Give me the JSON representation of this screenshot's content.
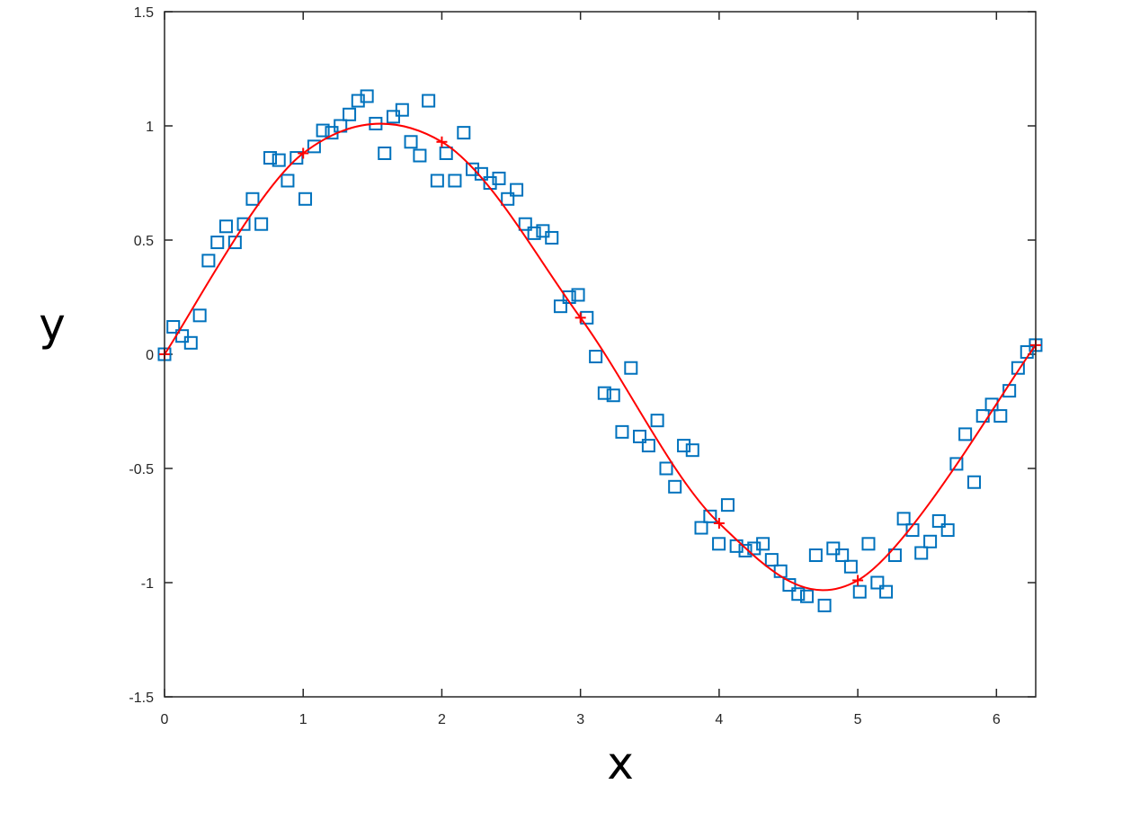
{
  "chart_data": {
    "type": "scatter",
    "xlabel": "x",
    "ylabel": "y",
    "xlim": [
      0,
      6.2832
    ],
    "ylim": [
      -1.5,
      1.5
    ],
    "xticks": [
      "0",
      "1",
      "2",
      "3",
      "4",
      "5",
      "6"
    ],
    "yticks": [
      "-1.5",
      "-1",
      "-0.5",
      "0",
      "0.5",
      "1",
      "1.5"
    ],
    "grid": false,
    "colors": {
      "scatter": "#0072bd",
      "fit": "#ff0000"
    },
    "series": [
      {
        "style": "square-markers",
        "x": [
          0.0,
          0.063,
          0.127,
          0.19,
          0.254,
          0.317,
          0.381,
          0.444,
          0.508,
          0.571,
          0.635,
          0.698,
          0.762,
          0.825,
          0.888,
          0.952,
          1.015,
          1.079,
          1.142,
          1.206,
          1.269,
          1.333,
          1.396,
          1.46,
          1.523,
          1.587,
          1.65,
          1.714,
          1.777,
          1.841,
          1.904,
          1.967,
          2.031,
          2.094,
          2.158,
          2.221,
          2.285,
          2.348,
          2.412,
          2.475,
          2.539,
          2.602,
          2.666,
          2.729,
          2.793,
          2.856,
          2.919,
          2.983,
          3.046,
          3.11,
          3.173,
          3.237,
          3.3,
          3.364,
          3.427,
          3.491,
          3.554,
          3.618,
          3.681,
          3.745,
          3.808,
          3.871,
          3.935,
          3.998,
          4.062,
          4.125,
          4.189,
          4.252,
          4.316,
          4.379,
          4.443,
          4.506,
          4.57,
          4.633,
          4.697,
          4.76,
          4.823,
          4.887,
          4.95,
          5.014,
          5.077,
          5.141,
          5.204,
          5.268,
          5.331,
          5.395,
          5.458,
          5.522,
          5.585,
          5.649,
          5.712,
          5.775,
          5.839,
          5.902,
          5.966,
          6.029,
          6.093,
          6.156,
          6.22,
          6.283
        ],
        "y": [
          0.0,
          0.12,
          0.08,
          0.05,
          0.17,
          0.41,
          0.49,
          0.56,
          0.49,
          0.57,
          0.68,
          0.57,
          0.86,
          0.85,
          0.76,
          0.86,
          0.68,
          0.91,
          0.98,
          0.97,
          1.0,
          1.05,
          1.11,
          1.13,
          1.01,
          0.88,
          1.04,
          1.07,
          0.93,
          0.87,
          1.11,
          0.76,
          0.88,
          0.76,
          0.97,
          0.81,
          0.79,
          0.75,
          0.77,
          0.68,
          0.72,
          0.57,
          0.53,
          0.54,
          0.51,
          0.21,
          0.25,
          0.26,
          0.16,
          -0.01,
          -0.17,
          -0.18,
          -0.34,
          -0.06,
          -0.36,
          -0.4,
          -0.29,
          -0.5,
          -0.58,
          -0.4,
          -0.42,
          -0.76,
          -0.71,
          -0.83,
          -0.66,
          -0.84,
          -0.86,
          -0.85,
          -0.83,
          -0.9,
          -0.95,
          -1.01,
          -1.05,
          -1.06,
          -0.88,
          -1.1,
          -0.85,
          -0.88,
          -0.93,
          -1.04,
          -0.83,
          -1.0,
          -1.04,
          -0.88,
          -0.72,
          -0.77,
          -0.87,
          -0.82,
          -0.73,
          -0.77,
          -0.48,
          -0.35,
          -0.56,
          -0.27,
          -0.22,
          -0.27,
          -0.16,
          -0.06,
          0.01,
          0.04
        ]
      },
      {
        "style": "line-with-plus-markers",
        "x": [
          0,
          1,
          2,
          3,
          4,
          5,
          6.2832
        ],
        "y": [
          0.0,
          0.88,
          0.93,
          0.16,
          -0.74,
          -0.99,
          0.04
        ]
      }
    ]
  }
}
